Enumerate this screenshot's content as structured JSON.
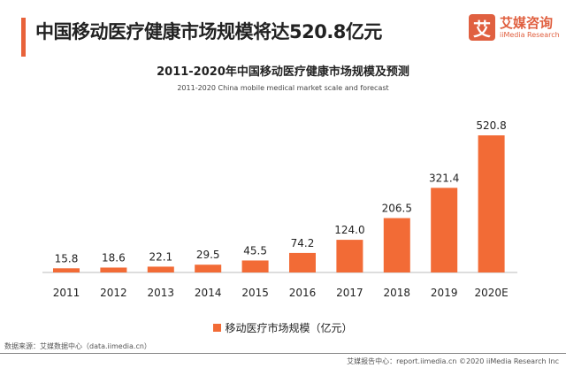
{
  "header": {
    "title": "中国移动医疗健康市场规模将达520.8亿元",
    "logo_cn": "艾媒咨询",
    "logo_en": "iiMedia Research",
    "logo_mark": "艾"
  },
  "chart_data": {
    "type": "bar",
    "title": "2011-2020年中国移动医疗健康市场规模及预测",
    "subtitle": "2011-2020 China mobile medical market scale and forecast",
    "categories": [
      "2011",
      "2012",
      "2013",
      "2014",
      "2015",
      "2016",
      "2017",
      "2018",
      "2019",
      "2020E"
    ],
    "series": [
      {
        "name": "移动医疗市场规模（亿元）",
        "values": [
          15.8,
          18.6,
          22.1,
          29.5,
          45.5,
          74.2,
          124.0,
          206.5,
          321.4,
          520.8
        ],
        "color": "#f26b36"
      }
    ],
    "value_labels": [
      "15.8",
      "18.6",
      "22.1",
      "29.5",
      "45.5",
      "74.2",
      "124.0",
      "206.5",
      "321.4",
      "520.8"
    ],
    "ylim": [
      0,
      520.8
    ],
    "grid": false,
    "legend_placement": "bottom"
  },
  "footer": {
    "source": "数据来源：艾媒数据中心（data.iimedia.cn）",
    "copyright": "艾媒报告中心：report.iimedia.cn  ©2020 iiMedia Research Inc"
  }
}
